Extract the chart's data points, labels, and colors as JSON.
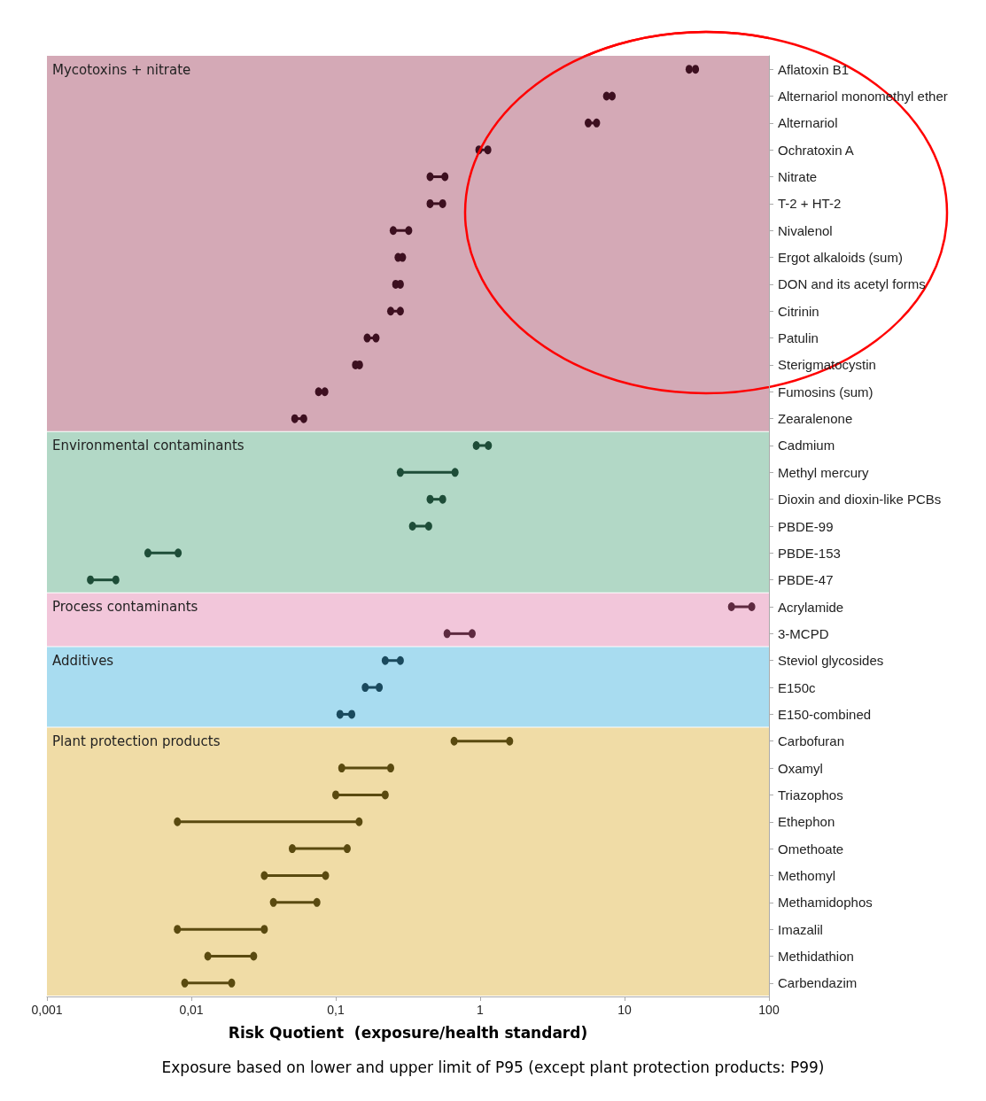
{
  "chart_data": {
    "type": "bar",
    "orientation": "horizontal",
    "xlabel": "Risk Quotient  (exposure/health standard)",
    "annotations": [
      "Exposure based on lower and upper limit of P95 (except  plant protection products: P99)"
    ],
    "categories": [
      "Aflatoxin B1",
      "Alternariol monomethyl ether",
      "Alternariol",
      "Ochratoxin A",
      "Nitrate",
      "T-2 + HT-2",
      "Nivalenol",
      "Ergot alkaloids (sum)",
      "DON and its acetyl forms",
      "Citrinin",
      "Patulin",
      "Sterigmatocystin",
      "Fumosins (sum)",
      "Zearalenone",
      "Cadmium",
      "Methyl mercury",
      "Dioxin and dioxin-like PCBs",
      "PBDE-99",
      "PBDE-153",
      "PBDE-47",
      "Acrylamide",
      "3-MCPD",
      "Steviol glycosides",
      "E150c",
      "E150-combined",
      "Carbofuran",
      "Oxamyl",
      "Triazophos",
      "Ethephon",
      "Omethoate",
      "Methomyl",
      "Methamidophos",
      "Imazalil",
      "Methidathion",
      "Carbendazim"
    ],
    "series": [
      {
        "base": [
          null,
          null,
          5.6,
          0.98,
          0.45,
          0.45,
          0.25,
          null,
          null,
          0.24,
          0.165,
          null,
          null,
          0.052,
          0.94,
          0.28,
          0.45,
          0.34,
          0.005,
          0.002,
          55,
          0.59,
          0.22,
          0.16,
          0.107,
          0.66,
          0.11,
          0.1,
          0.008,
          0.05,
          0.032,
          0.037,
          0.008,
          0.013,
          0.009
        ],
        "values": [
          null,
          null,
          0.8,
          0.15,
          0.12,
          0.1,
          0.07,
          null,
          null,
          0.04,
          0.025,
          null,
          null,
          0.008,
          0.2,
          0.39,
          0.1,
          0.1,
          0.0031,
          0.001,
          21,
          0.29,
          0.06,
          0.04,
          0.022,
          0.94,
          0.13,
          0.12,
          0.137,
          0.07,
          0.053,
          0.037,
          0.024,
          0.014,
          0.01
        ],
        "colors": [
          null,
          null,
          "#3d1020",
          "#3d1020",
          "#3d1020",
          "#3d1020",
          "#3d1020",
          null,
          null,
          "#3d1020",
          "#3d1020",
          null,
          null,
          "#3d1020",
          "#1e4d38",
          "#1e4d38",
          "#1e4d38",
          "#1e4d38",
          "#1e4d38",
          "#1e4d38",
          "#5e2a40",
          "#5e2a40",
          "#1a4a5e",
          "#1a4a5e",
          "#1a4a5e",
          "#5a4a10",
          "#5a4a10",
          "#5a4a10",
          "#5a4a10",
          "#5a4a10",
          "#5a4a10",
          "#5a4a10",
          "#5a4a10",
          "#5a4a10",
          "#5a4a10"
        ]
      },
      {
        "type": "scatter",
        "marker": "circle",
        "values": [
          28,
          7.5,
          5.6,
          0.98,
          0.45,
          0.45,
          0.25,
          0.27,
          0.26,
          0.24,
          0.165,
          0.137,
          0.076,
          0.052,
          0.94,
          0.28,
          0.45,
          0.34,
          0.005,
          0.002,
          55,
          0.59,
          0.22,
          0.16,
          0.107,
          0.66,
          0.11,
          0.1,
          0.008,
          0.05,
          0.032,
          0.037,
          0.008,
          0.013,
          0.009
        ],
        "colors": [
          "#3d1020",
          "#3d1020",
          "#3d1020",
          "#3d1020",
          "#3d1020",
          "#3d1020",
          "#3d1020",
          "#3d1020",
          "#3d1020",
          "#3d1020",
          "#3d1020",
          "#3d1020",
          "#3d1020",
          "#3d1020",
          "#1e4d38",
          "#1e4d38",
          "#1e4d38",
          "#1e4d38",
          "#1e4d38",
          "#1e4d38",
          "#5e2a40",
          "#5e2a40",
          "#1a4a5e",
          "#1a4a5e",
          "#1a4a5e",
          "#5a4a10",
          "#5a4a10",
          "#5a4a10",
          "#5a4a10",
          "#5a4a10",
          "#5a4a10",
          "#5a4a10",
          "#5a4a10",
          "#5a4a10",
          "#5a4a10"
        ]
      },
      {
        "type": "scatter",
        "marker": "circle",
        "values": [
          31,
          8.2,
          6.4,
          1.13,
          0.57,
          0.55,
          0.32,
          0.29,
          0.28,
          0.28,
          0.19,
          0.146,
          0.084,
          0.06,
          1.14,
          0.67,
          0.55,
          0.44,
          0.0081,
          0.003,
          76,
          0.88,
          0.28,
          0.2,
          0.129,
          1.6,
          0.24,
          0.22,
          0.145,
          0.12,
          0.085,
          0.074,
          0.032,
          0.027,
          0.019
        ],
        "colors": [
          "#3d1020",
          "#3d1020",
          "#3d1020",
          "#3d1020",
          "#3d1020",
          "#3d1020",
          "#3d1020",
          "#3d1020",
          "#3d1020",
          "#3d1020",
          "#3d1020",
          "#3d1020",
          "#3d1020",
          "#3d1020",
          "#1e4d38",
          "#1e4d38",
          "#1e4d38",
          "#1e4d38",
          "#1e4d38",
          "#1e4d38",
          "#5e2a40",
          "#5e2a40",
          "#1a4a5e",
          "#1a4a5e",
          "#1a4a5e",
          "#5a4a10",
          "#5a4a10",
          "#5a4a10",
          "#5a4a10",
          "#5a4a10",
          "#5a4a10",
          "#5a4a10",
          "#5a4a10",
          "#5a4a10",
          "#5a4a10"
        ]
      }
    ],
    "log": "x",
    "xlim": [
      0.001,
      100
    ],
    "xticks": [
      {
        "value": 0.001,
        "label": "0,001"
      },
      {
        "value": 0.01,
        "label": "0,01"
      },
      {
        "value": 0.1,
        "label": "0,1"
      },
      1,
      10,
      100
    ],
    "bands": [
      {
        "axis": "y",
        "from": "Aflatoxin B1",
        "to": "Zearalenone",
        "label": "Mycotoxins + nitrate",
        "color": "#d4a9b6"
      },
      {
        "axis": "y",
        "from": "Cadmium",
        "to": "PBDE-47",
        "label": "Environmental contaminants",
        "color": "#b2d8c6"
      },
      {
        "axis": "y",
        "from": "Acrylamide",
        "to": "3-MCPD",
        "label": "Process contaminants",
        "color": "#f2c6da"
      },
      {
        "axis": "y",
        "from": "Steviol glycosides",
        "to": "E150-combined",
        "label": "Additives",
        "color": "#a8dcf0"
      },
      {
        "axis": "y",
        "from": "Carbofuran",
        "to": "Carbendazim",
        "label": "Plant protection products",
        "color": "#f0dca6"
      }
    ],
    "grid": false
  }
}
